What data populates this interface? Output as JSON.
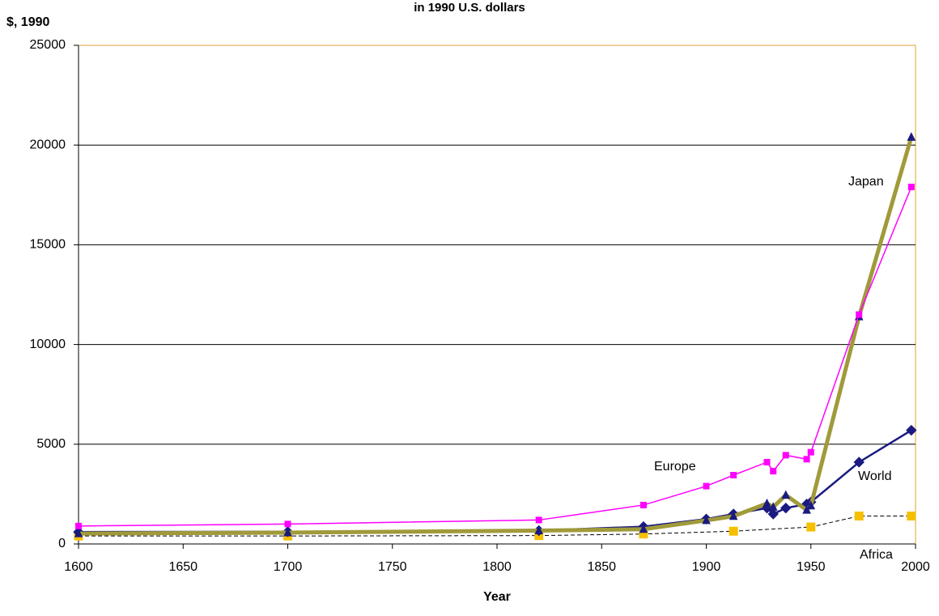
{
  "chart_data": {
    "type": "line",
    "title": "in 1990 U.S. dollars",
    "y_label": "$, 1990",
    "x_label": "Year",
    "xlim": [
      1600,
      2000
    ],
    "xticks": [
      1600,
      1650,
      1700,
      1750,
      1800,
      1850,
      1900,
      1950,
      2000
    ],
    "ylim": [
      0,
      25000
    ],
    "yticks": [
      0,
      5000,
      10000,
      15000,
      20000,
      25000
    ],
    "grid": true,
    "series": [
      {
        "name": "Europe",
        "color": "#ff00ff",
        "marker_color": "#ff00ff",
        "marker": "square",
        "line_width": 1.5,
        "x": [
          1600,
          1700,
          1820,
          1870,
          1900,
          1913,
          1929,
          1932,
          1938,
          1948,
          1950,
          1973,
          1998
        ],
        "values": [
          900,
          1000,
          1200,
          1950,
          2900,
          3450,
          4100,
          3650,
          4450,
          4250,
          4600,
          11500,
          17900
        ]
      },
      {
        "name": "Japan",
        "color": "#a09a3a",
        "marker_color": "#1a1a80",
        "marker": "triangle",
        "line_width": 5,
        "x": [
          1600,
          1700,
          1820,
          1870,
          1900,
          1913,
          1929,
          1932,
          1938,
          1948,
          1950,
          1973,
          1998
        ],
        "values": [
          520,
          570,
          670,
          740,
          1180,
          1390,
          2030,
          1850,
          2450,
          1700,
          1920,
          11400,
          20400
        ]
      },
      {
        "name": "World",
        "color": "#1a1a80",
        "marker_color": "#1a1a80",
        "marker": "diamond",
        "line_width": 2.5,
        "x": [
          1600,
          1700,
          1820,
          1870,
          1900,
          1913,
          1929,
          1932,
          1938,
          1948,
          1950,
          1973,
          1998
        ],
        "values": [
          600,
          615,
          670,
          870,
          1250,
          1500,
          1800,
          1500,
          1800,
          2000,
          2100,
          4100,
          5700
        ]
      },
      {
        "name": "Africa",
        "color": "#000000",
        "marker_color": "#f5c000",
        "marker": "square-large",
        "line_width": 1,
        "dash": true,
        "x": [
          1600,
          1700,
          1820,
          1870,
          1913,
          1950,
          1973,
          1998
        ],
        "values": [
          400,
          400,
          420,
          500,
          640,
          850,
          1400,
          1400
        ]
      }
    ],
    "annotations": [
      "Japan",
      "Europe",
      "World",
      "Africa"
    ]
  }
}
